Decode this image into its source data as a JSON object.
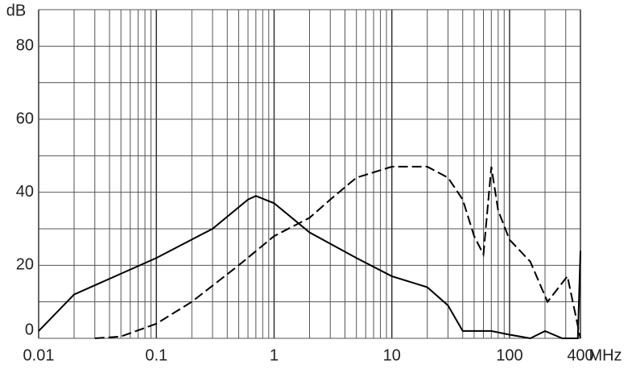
{
  "chart_data": {
    "type": "line",
    "x_label": "MHz",
    "y_label": "dB",
    "log_x": true,
    "xlim": [
      0.01,
      400
    ],
    "ylim": [
      0,
      90
    ],
    "xticks": [
      0.01,
      0.1,
      1,
      10,
      100,
      400
    ],
    "yticks": [
      0,
      20,
      40,
      60,
      80
    ],
    "xgrid": [
      0.02,
      0.03,
      0.04,
      0.05,
      0.06,
      0.07,
      0.08,
      0.09,
      0.2,
      0.3,
      0.4,
      0.5,
      0.6,
      0.7,
      0.8,
      0.9,
      2,
      3,
      4,
      5,
      6,
      7,
      8,
      9,
      20,
      30,
      40,
      50,
      60,
      70,
      80,
      90,
      200,
      300
    ],
    "ygrid": [
      10,
      30,
      50,
      70,
      90
    ],
    "grid": true,
    "series": [
      {
        "color": "#000000",
        "dash": "none",
        "x": [
          0.01,
          0.02,
          0.1,
          0.3,
          0.6,
          0.7,
          1,
          2,
          5,
          10,
          20,
          30,
          40,
          70,
          100,
          150,
          200,
          280,
          380,
          400
        ],
        "values": [
          2,
          12,
          22,
          30,
          38,
          39,
          37,
          29,
          22,
          17,
          14,
          9,
          2,
          2,
          1,
          0,
          2,
          0,
          0,
          24
        ]
      },
      {
        "color": "#000000",
        "dash": "12 5",
        "x": [
          0.03,
          0.05,
          0.1,
          0.2,
          0.5,
          1,
          2,
          3,
          5,
          10,
          20,
          30,
          40,
          50,
          60,
          70,
          80,
          100,
          150,
          210,
          310,
          400
        ],
        "values": [
          0,
          0.5,
          4,
          10,
          20,
          28,
          33,
          38,
          44,
          47,
          47,
          44,
          38,
          28,
          23,
          47,
          35,
          27,
          21,
          10,
          17,
          0
        ]
      }
    ]
  }
}
